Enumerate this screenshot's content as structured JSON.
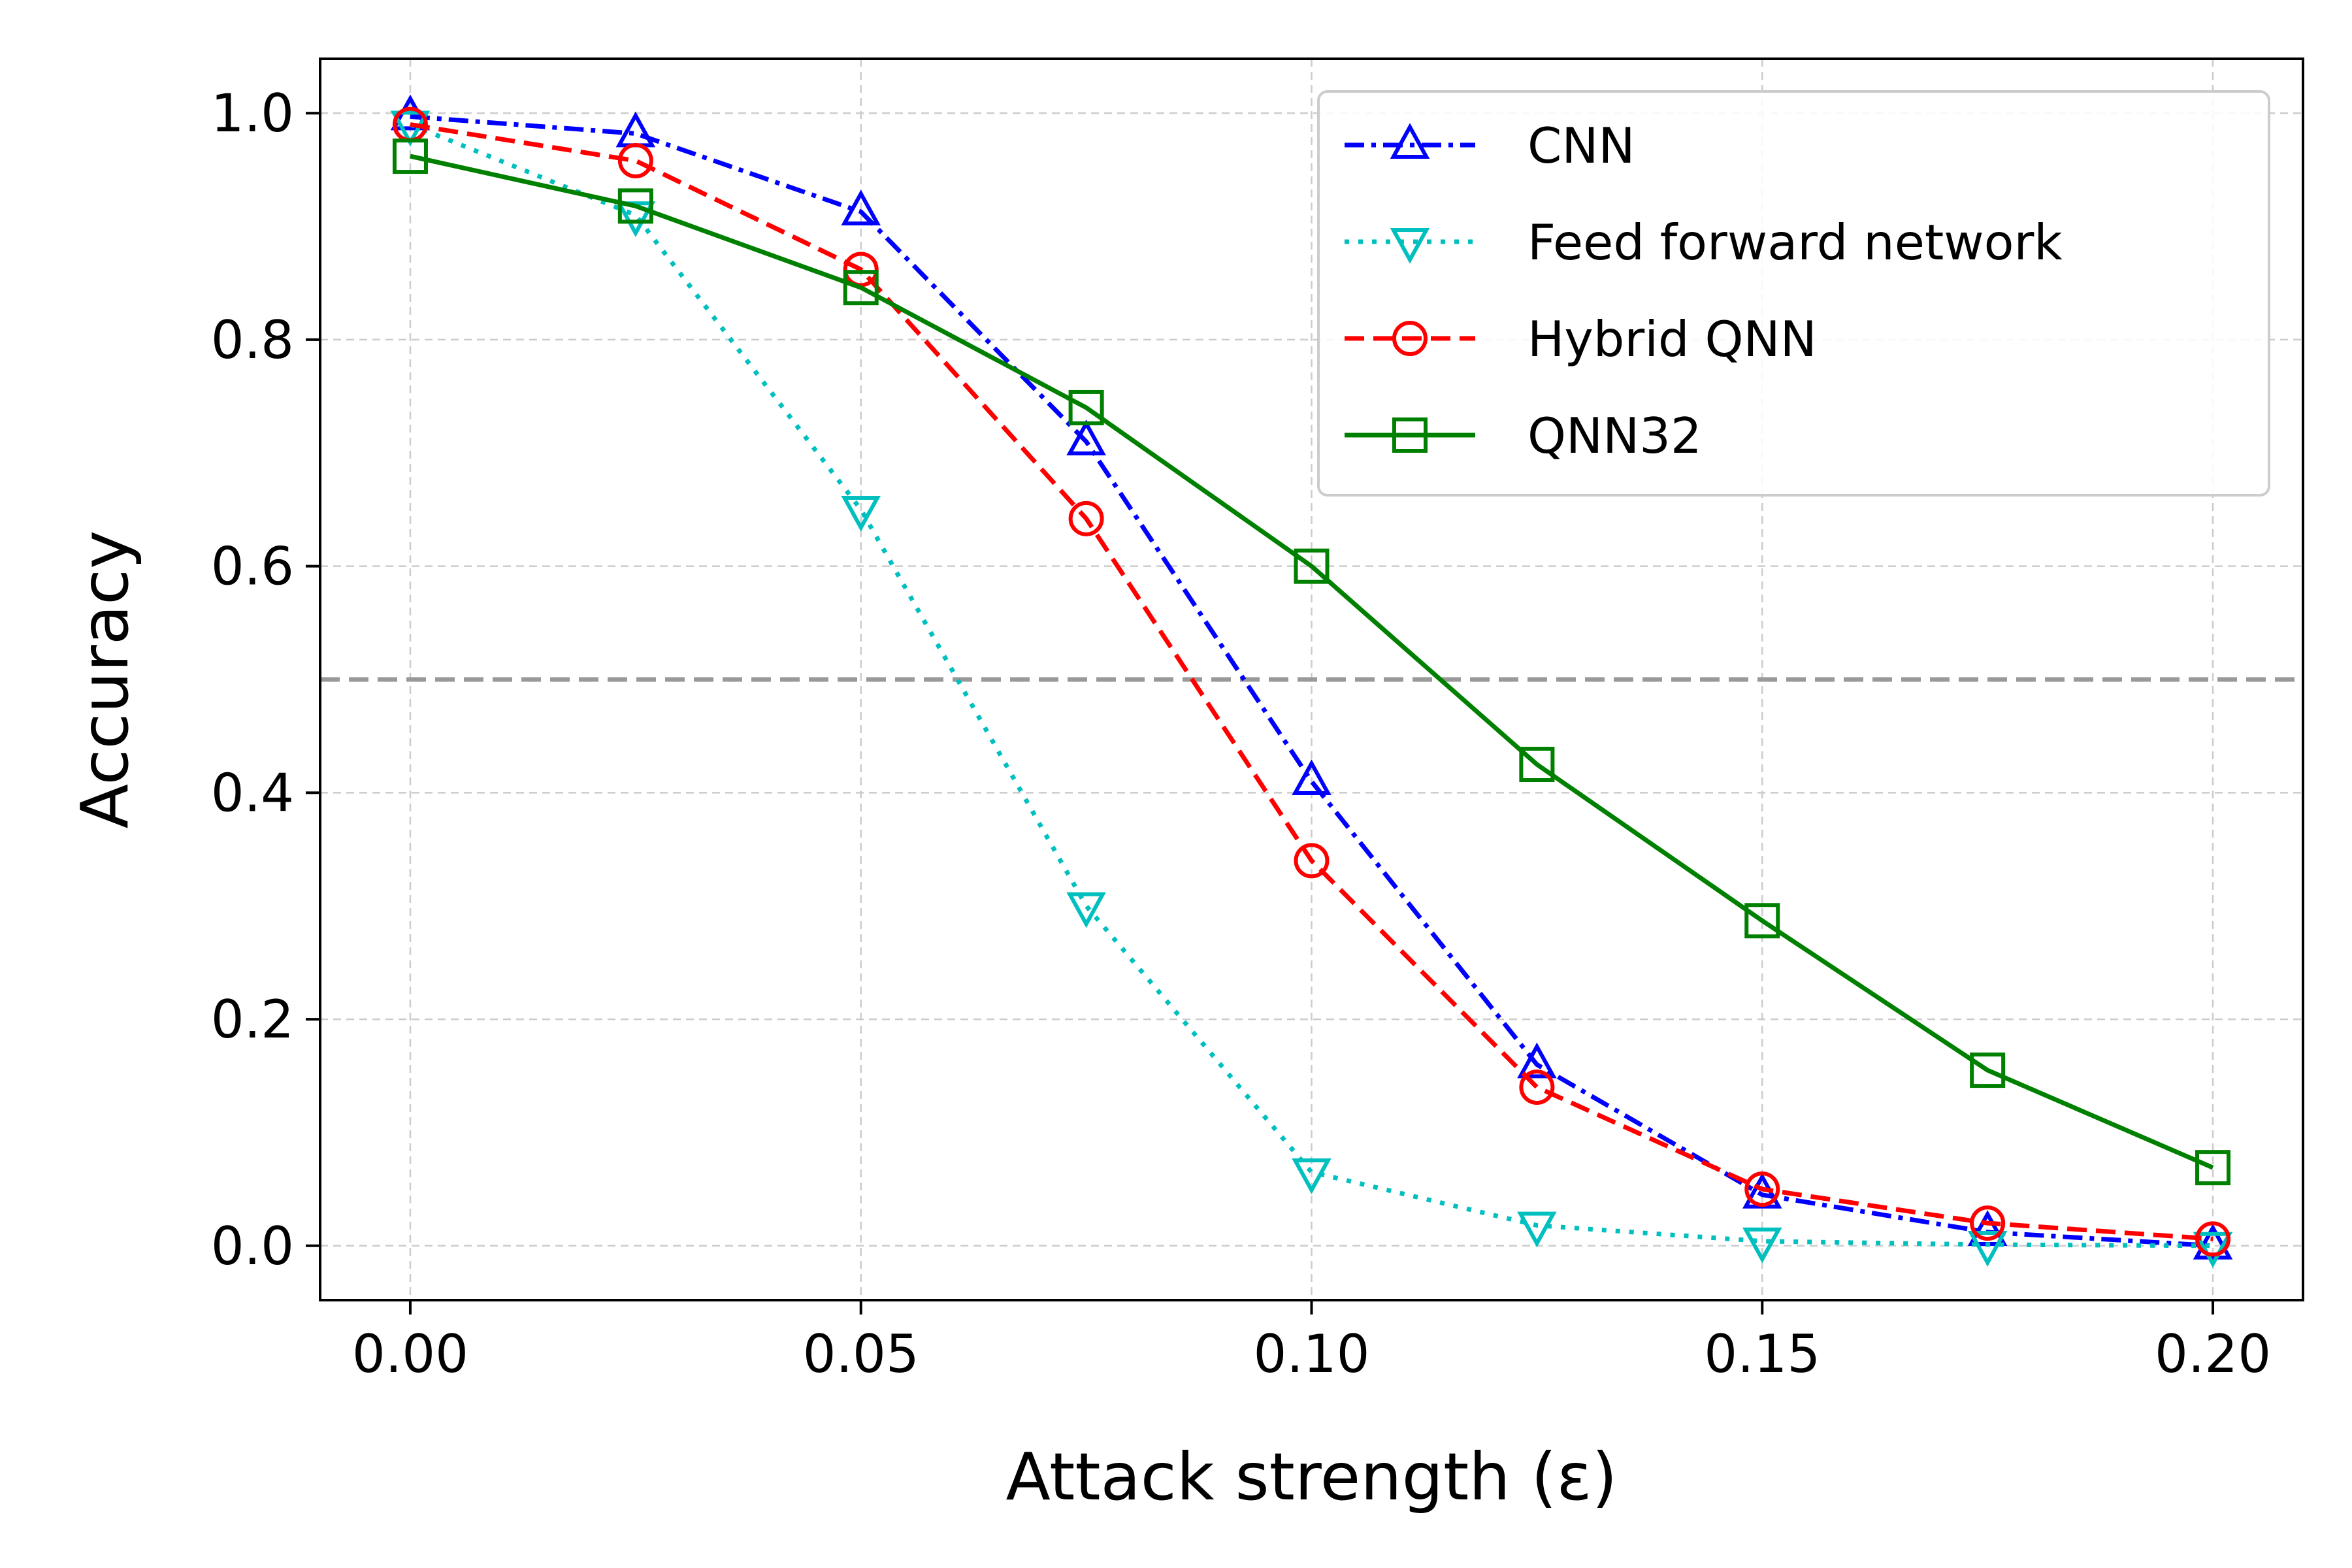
{
  "chart_data": {
    "type": "line",
    "xlabel": "Attack strength (ε)",
    "ylabel": "Accuracy",
    "xlim": [
      -0.01,
      0.21
    ],
    "ylim": [
      -0.048,
      1.048
    ],
    "x_ticks": [
      0.0,
      0.05,
      0.1,
      0.15,
      0.2
    ],
    "x_tick_labels": [
      "0.00",
      "0.05",
      "0.10",
      "0.15",
      "0.20"
    ],
    "y_ticks": [
      0.0,
      0.2,
      0.4,
      0.6,
      0.8,
      1.0
    ],
    "y_tick_labels": [
      "0.0",
      "0.2",
      "0.4",
      "0.6",
      "0.8",
      "1.0"
    ],
    "grid": true,
    "legend_position": "top-right",
    "reference_line": {
      "y": 0.5,
      "color": "#999999",
      "style": "dashed"
    },
    "x": [
      0.0,
      0.025,
      0.05,
      0.075,
      0.1,
      0.125,
      0.15,
      0.175,
      0.2
    ],
    "series": [
      {
        "name": "CNN",
        "color": "#0000ff",
        "dash": "dashdot",
        "marker": "triangle-up",
        "values": [
          0.997,
          0.982,
          0.913,
          0.71,
          0.41,
          0.16,
          0.045,
          0.012,
          0.0
        ]
      },
      {
        "name": "Feed forward network",
        "color": "#00bfbf",
        "dash": "dotted",
        "marker": "triangle-down",
        "values": [
          0.99,
          0.91,
          0.65,
          0.3,
          0.065,
          0.018,
          0.004,
          0.001,
          0.0
        ]
      },
      {
        "name": "Hybrid QNN",
        "color": "#ff0000",
        "dash": "dashed",
        "marker": "circle",
        "values": [
          0.99,
          0.958,
          0.862,
          0.642,
          0.34,
          0.14,
          0.05,
          0.02,
          0.006
        ]
      },
      {
        "name": "QNN32",
        "color": "#008000",
        "dash": "solid",
        "marker": "square",
        "values": [
          0.962,
          0.918,
          0.846,
          0.74,
          0.6,
          0.425,
          0.287,
          0.155,
          0.069
        ]
      }
    ]
  }
}
